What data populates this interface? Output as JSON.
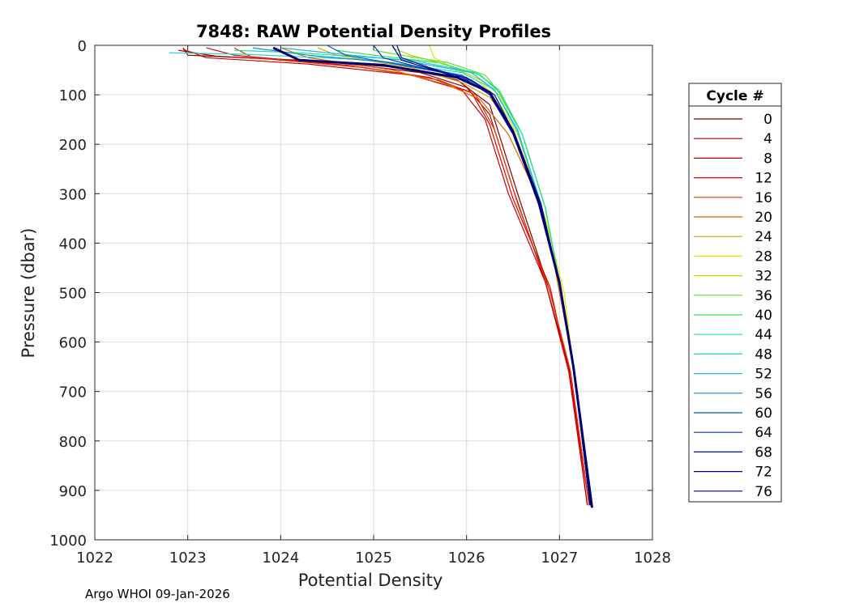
{
  "chart_data": {
    "type": "line",
    "title": "7848: RAW Potential Density Profiles",
    "xlabel": "Potential Density",
    "ylabel": "Pressure (dbar)",
    "xlim": [
      1022,
      1028
    ],
    "ylim": [
      0,
      1000
    ],
    "y_reversed": true,
    "grid": true,
    "xticks": [
      1022,
      1023,
      1024,
      1025,
      1026,
      1027,
      1028
    ],
    "yticks": [
      0,
      100,
      200,
      300,
      400,
      500,
      600,
      700,
      800,
      900,
      1000
    ],
    "legend_title": "Cycle #",
    "legend_position": "right",
    "series": [
      {
        "name": "0",
        "color": "#800000",
        "x": [
          1022.95,
          1023.0,
          1024.2,
          1025.3,
          1025.9,
          1026.25,
          1026.55,
          1026.9,
          1027.1,
          1027.3
        ],
        "y": [
          5,
          20,
          30,
          45,
          70,
          120,
          300,
          500,
          650,
          930
        ]
      },
      {
        "name": "4",
        "color": "#a00000",
        "x": [
          1022.9,
          1023.3,
          1024.6,
          1025.5,
          1026.0,
          1026.25,
          1026.5,
          1026.85,
          1027.1,
          1027.32
        ],
        "y": [
          10,
          22,
          35,
          55,
          85,
          140,
          290,
          480,
          650,
          930
        ]
      },
      {
        "name": "8",
        "color": "#cc0000",
        "x": [
          1022.95,
          1023.2,
          1024.3,
          1025.4,
          1025.95,
          1026.2,
          1026.45,
          1026.85,
          1027.1,
          1027.3
        ],
        "y": [
          8,
          25,
          38,
          60,
          90,
          150,
          300,
          480,
          660,
          930
        ]
      },
      {
        "name": "12",
        "color": "#e00000",
        "x": [
          1023.2,
          1023.5,
          1024.7,
          1025.6,
          1026.05,
          1026.25,
          1026.5,
          1026.9,
          1027.1,
          1027.32
        ],
        "y": [
          5,
          20,
          40,
          65,
          95,
          160,
          310,
          490,
          660,
          930
        ]
      },
      {
        "name": "16",
        "color": "#e63300",
        "x": [
          1023.5,
          1023.7,
          1024.9,
          1025.7,
          1026.1,
          1026.3,
          1026.55,
          1026.9,
          1027.12,
          1027.32
        ],
        "y": [
          5,
          25,
          45,
          70,
          100,
          170,
          320,
          500,
          660,
          930
        ]
      },
      {
        "name": "20",
        "color": "#e06600",
        "x": [
          1024.0,
          1024.3,
          1025.2,
          1025.8,
          1026.15,
          1026.45,
          1026.75,
          1026.95,
          1027.15,
          1027.33
        ],
        "y": [
          5,
          25,
          50,
          80,
          110,
          180,
          300,
          450,
          650,
          930
        ]
      },
      {
        "name": "24",
        "color": "#d9a000",
        "x": [
          1024.4,
          1024.6,
          1025.4,
          1025.95,
          1026.25,
          1026.5,
          1026.8,
          1027.0,
          1027.15,
          1027.33
        ],
        "y": [
          5,
          20,
          45,
          75,
          105,
          170,
          320,
          480,
          650,
          930
        ]
      },
      {
        "name": "28",
        "color": "#e6e600",
        "x": [
          1025.6,
          1025.65,
          1025.85,
          1026.1,
          1026.3,
          1026.55,
          1026.85,
          1027.05,
          1027.15,
          1027.33
        ],
        "y": [
          0,
          25,
          45,
          70,
          100,
          180,
          350,
          500,
          650,
          930
        ]
      },
      {
        "name": "32",
        "color": "#b0e000",
        "x": [
          1025.2,
          1025.4,
          1025.8,
          1026.15,
          1026.35,
          1026.6,
          1026.85,
          1027.0,
          1027.15,
          1027.33
        ],
        "y": [
          5,
          20,
          40,
          70,
          100,
          180,
          330,
          480,
          650,
          930
        ]
      },
      {
        "name": "36",
        "color": "#60e030",
        "x": [
          1025.0,
          1025.3,
          1025.8,
          1026.2,
          1026.35,
          1026.6,
          1026.85,
          1027.0,
          1027.15,
          1027.33
        ],
        "y": [
          10,
          20,
          35,
          60,
          95,
          180,
          330,
          480,
          650,
          930
        ]
      },
      {
        "name": "40",
        "color": "#30e060",
        "x": [
          1024.6,
          1025.0,
          1025.7,
          1026.15,
          1026.35,
          1026.6,
          1026.85,
          1027.0,
          1027.15,
          1027.33
        ],
        "y": [
          10,
          20,
          35,
          60,
          95,
          180,
          330,
          480,
          650,
          930
        ]
      },
      {
        "name": "44",
        "color": "#20e0a0",
        "x": [
          1023.5,
          1024.2,
          1025.4,
          1026.1,
          1026.35,
          1026.6,
          1026.85,
          1027.0,
          1027.15,
          1027.33
        ],
        "y": [
          10,
          15,
          30,
          55,
          90,
          180,
          330,
          480,
          650,
          930
        ]
      },
      {
        "name": "48",
        "color": "#20d8c8",
        "x": [
          1022.8,
          1023.6,
          1025.0,
          1025.95,
          1026.3,
          1026.55,
          1026.8,
          1027.0,
          1027.15,
          1027.33
        ],
        "y": [
          15,
          18,
          30,
          55,
          90,
          170,
          320,
          480,
          650,
          930
        ]
      },
      {
        "name": "52",
        "color": "#20b8d8",
        "x": [
          1024.0,
          1024.5,
          1025.3,
          1026.05,
          1026.3,
          1026.55,
          1026.8,
          1027.0,
          1027.15,
          1027.33
        ],
        "y": [
          5,
          15,
          30,
          55,
          90,
          175,
          320,
          480,
          650,
          930
        ]
      },
      {
        "name": "56",
        "color": "#1090c8",
        "x": [
          1023.7,
          1024.3,
          1025.2,
          1025.95,
          1026.25,
          1026.5,
          1026.78,
          1027.0,
          1027.15,
          1027.33
        ],
        "y": [
          5,
          20,
          35,
          60,
          95,
          170,
          320,
          480,
          650,
          930
        ]
      },
      {
        "name": "60",
        "color": "#0060b8",
        "x": [
          1024.5,
          1024.7,
          1025.3,
          1025.95,
          1026.25,
          1026.5,
          1026.78,
          1027.0,
          1027.15,
          1027.33
        ],
        "y": [
          0,
          20,
          40,
          62,
          95,
          175,
          320,
          480,
          650,
          930
        ]
      },
      {
        "name": "64",
        "color": "#0030c0",
        "x": [
          1025.0,
          1025.1,
          1025.5,
          1026.0,
          1026.25,
          1026.5,
          1026.8,
          1027.0,
          1027.15,
          1027.33
        ],
        "y": [
          0,
          25,
          45,
          65,
          95,
          175,
          320,
          480,
          650,
          930
        ]
      },
      {
        "name": "68",
        "color": "#0010a0",
        "x": [
          1025.25,
          1025.3,
          1025.6,
          1026.05,
          1026.3,
          1026.52,
          1026.8,
          1027.0,
          1027.15,
          1027.33
        ],
        "y": [
          0,
          25,
          45,
          70,
          100,
          180,
          320,
          480,
          650,
          930
        ]
      },
      {
        "name": "72",
        "color": "#00008c",
        "x": [
          1025.2,
          1025.3,
          1025.65,
          1026.0,
          1026.25,
          1026.5,
          1026.78,
          1027.0,
          1027.15,
          1027.33
        ],
        "y": [
          0,
          30,
          50,
          70,
          100,
          180,
          320,
          480,
          650,
          930
        ]
      },
      {
        "name": "76",
        "color": "#000070",
        "x": [
          1023.92,
          1024.2,
          1025.1,
          1025.9,
          1026.25,
          1026.5,
          1026.78,
          1027.0,
          1027.15,
          1027.35
        ],
        "y": [
          5,
          30,
          40,
          65,
          95,
          175,
          320,
          480,
          650,
          935
        ]
      }
    ]
  },
  "footer": "Argo WHOI 09-Jan-2026"
}
